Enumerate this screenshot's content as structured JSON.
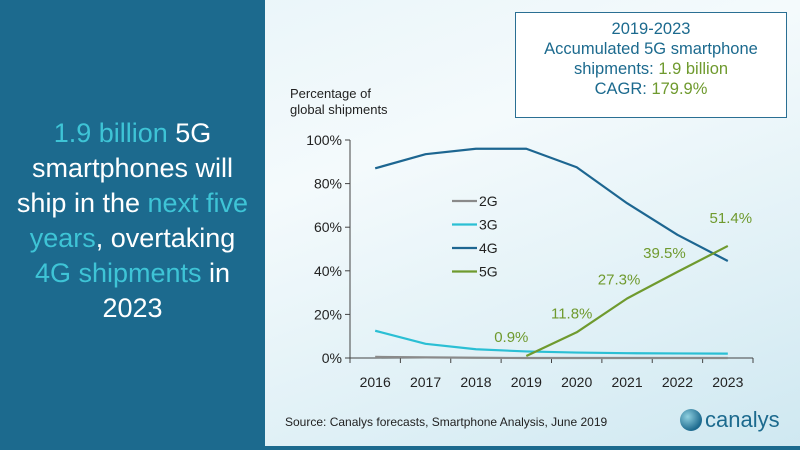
{
  "headline": {
    "parts": [
      {
        "text": "1.9 billion",
        "highlight": true
      },
      {
        "text": " 5G smartphones will ship in the ",
        "highlight": false
      },
      {
        "text": "next five years",
        "highlight": true
      },
      {
        "text": ", overtaking ",
        "highlight": false
      },
      {
        "text": "4G shipments",
        "highlight": true
      },
      {
        "text": " in 2023",
        "highlight": false
      }
    ]
  },
  "infobox": {
    "line1": "2019-2023",
    "line2": "Accumulated 5G smartphone",
    "line3_label": "shipments: ",
    "line3_value": "1.9 billion",
    "line4_label": "CAGR: ",
    "line4_value": "179.9%"
  },
  "source": "Source: Canalys forecasts, Smartphone Analysis, June 2019",
  "logo": "canalys",
  "colors": {
    "panel": "#1c6a8e",
    "highlight": "#3ec4d6",
    "2G": "#8a8a8a",
    "3G": "#2bbfd4",
    "4G": "#1d6691",
    "5G": "#6f9a2e"
  },
  "chart_data": {
    "type": "line",
    "ylabel": "Percentage of global shipments",
    "ylabel_lines": [
      "Percentage of",
      "global shipments"
    ],
    "categories": [
      "2016",
      "2017",
      "2018",
      "2019",
      "2020",
      "2021",
      "2022",
      "2023"
    ],
    "ylim": [
      0,
      100
    ],
    "yticks": [
      "0%",
      "20%",
      "40%",
      "60%",
      "80%",
      "100%"
    ],
    "grid": false,
    "legend_placement": "center-left",
    "series": [
      {
        "name": "2G",
        "values": [
          0.5,
          0.3,
          0.1,
          0,
          0,
          0,
          0,
          0
        ]
      },
      {
        "name": "3G",
        "values": [
          12.5,
          6.5,
          4,
          3,
          2.5,
          2.2,
          2.1,
          2
        ]
      },
      {
        "name": "4G",
        "values": [
          87,
          93.5,
          96,
          96,
          87.5,
          71,
          56.5,
          44.5
        ]
      },
      {
        "name": "5G",
        "values": [
          null,
          null,
          null,
          0.9,
          11.8,
          27.3,
          39.5,
          51.4
        ]
      }
    ],
    "data_labels": {
      "series": "5G",
      "labels": [
        "0.9%",
        "11.8%",
        "27.3%",
        "39.5%",
        "51.4%"
      ]
    }
  }
}
